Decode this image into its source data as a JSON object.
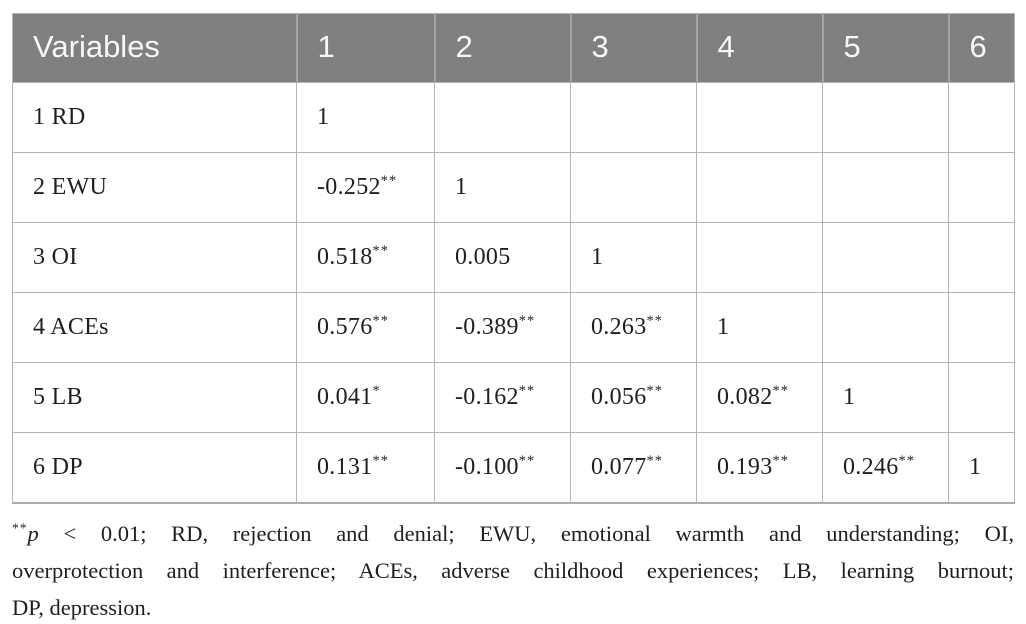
{
  "table": {
    "header": [
      "Variables",
      "1",
      "2",
      "3",
      "4",
      "5",
      "6"
    ],
    "rows": [
      {
        "label": "1 RD",
        "cells": [
          "1",
          "",
          "",
          "",
          "",
          ""
        ]
      },
      {
        "label": "2 EWU",
        "cells": [
          "-0.252**",
          "1",
          "",
          "",
          "",
          ""
        ]
      },
      {
        "label": "3 OI",
        "cells": [
          "0.518**",
          "0.005",
          "1",
          "",
          "",
          ""
        ]
      },
      {
        "label": "4 ACEs",
        "cells": [
          "0.576**",
          "-0.389**",
          "0.263**",
          "1",
          "",
          ""
        ]
      },
      {
        "label": "5 LB",
        "cells": [
          "0.041*",
          "-0.162**",
          "0.056**",
          "0.082**",
          "1",
          ""
        ]
      },
      {
        "label": "6 DP",
        "cells": [
          "0.131**",
          "-0.100**",
          "0.077**",
          "0.193**",
          "0.246**",
          "1"
        ]
      }
    ]
  },
  "footnote": {
    "sig_marker": "**",
    "p_symbol": "p",
    "line1_after_p": " < 0.01; RD, rejection and denial; EWU, emotional warmth and understanding; OI,",
    "line2": "overprotection and interference; ACEs, adverse childhood experiences; LB, learning burnout;",
    "line3": "DP, depression."
  },
  "colors": {
    "header_bg": "#7e817e",
    "header_text": "#f6f7f6",
    "grid": "#b4b4b4",
    "text": "#1f1f1f"
  }
}
